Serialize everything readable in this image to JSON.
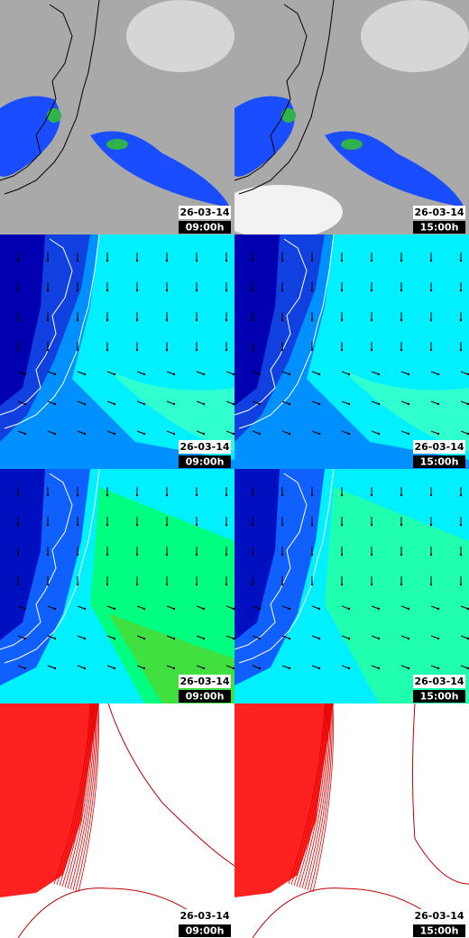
{
  "panels": [
    {
      "date": "26-03-14",
      "time": "09:00h"
    },
    {
      "date": "26-03-14",
      "time": "15:00h"
    },
    {
      "date": "26-03-14",
      "time": "09:00h"
    },
    {
      "date": "26-03-14",
      "time": "15:00h"
    },
    {
      "date": "26-03-14",
      "time": "09:00h"
    },
    {
      "date": "26-03-14",
      "time": "15:00h"
    },
    {
      "date": "26-03-14",
      "time": "09:00h"
    },
    {
      "date": "26-03-14",
      "time": "15:00h"
    }
  ]
}
